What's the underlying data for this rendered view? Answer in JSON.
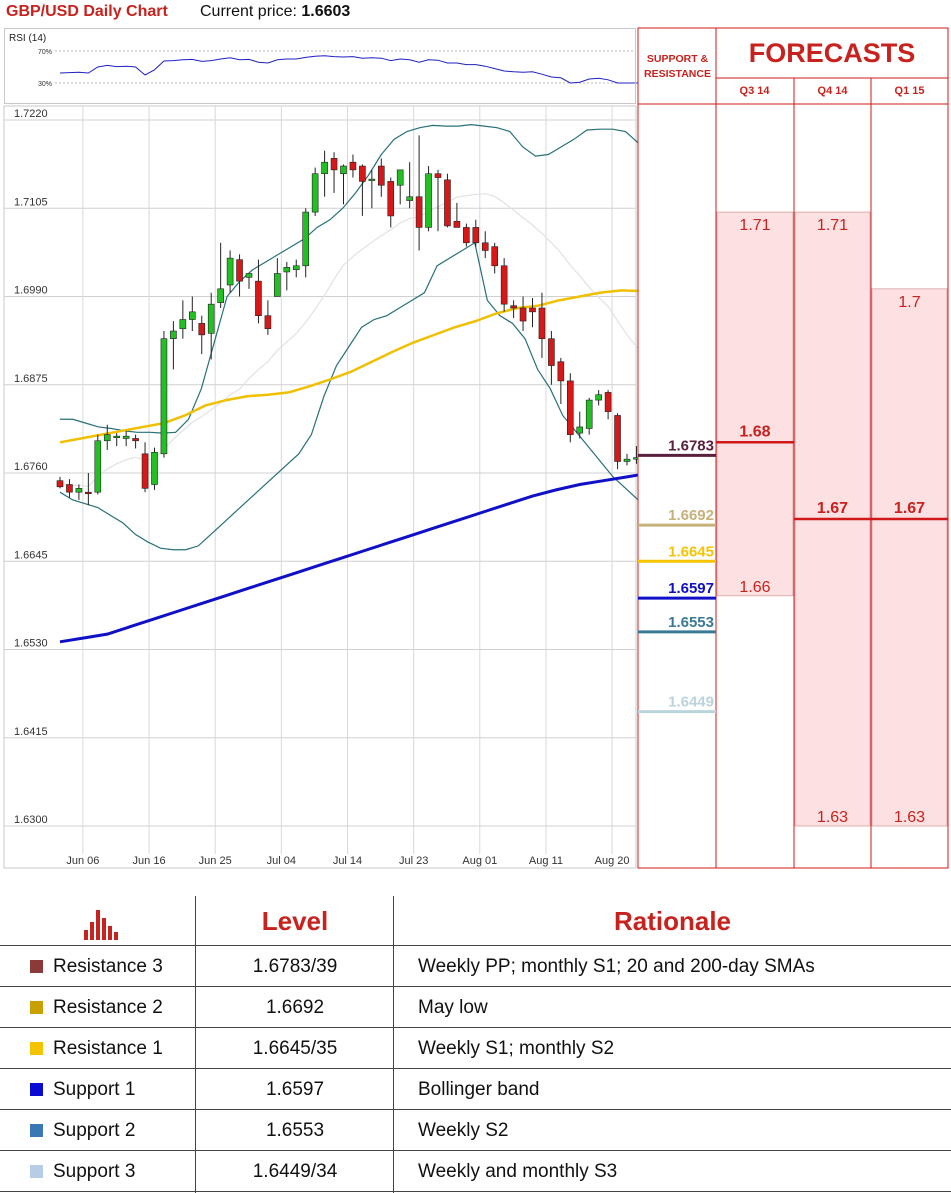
{
  "header": {
    "title": "GBP/USD Daily Chart",
    "current_price_label": "Current price:",
    "current_price": "1.6603"
  },
  "rsi": {
    "title": "RSI (14)",
    "levels": [
      "70%",
      "30%"
    ]
  },
  "chart_data": {
    "type": "candlestick",
    "title": "GBP/USD Daily Chart",
    "ylim": [
      1.63,
      1.722
    ],
    "y_ticks": [
      1.722,
      1.7105,
      1.699,
      1.6875,
      1.676,
      1.6645,
      1.653,
      1.6415,
      1.63
    ],
    "y_tick_labels": [
      "1.7220",
      "1.7105",
      "1.6990",
      "1.6875",
      "1.6760",
      "1.6645",
      "1.6530",
      "1.6415",
      "1.6300"
    ],
    "x_tick_labels": [
      "Jun 06",
      "Jun 16",
      "Jun 25",
      "Jul 04",
      "Jul 14",
      "Jul 23",
      "Aug 01",
      "Aug 11",
      "Aug 20"
    ],
    "x_tick_index": [
      2,
      9,
      16,
      23,
      30,
      37,
      44,
      51,
      58
    ],
    "candles": [
      {
        "o": 1.675,
        "h": 1.6755,
        "l": 1.674,
        "c": 1.6742
      },
      {
        "o": 1.6745,
        "h": 1.6752,
        "l": 1.6728,
        "c": 1.6735
      },
      {
        "o": 1.6735,
        "h": 1.6745,
        "l": 1.6725,
        "c": 1.674
      },
      {
        "o": 1.6735,
        "h": 1.676,
        "l": 1.6718,
        "c": 1.6733
      },
      {
        "o": 1.6735,
        "h": 1.681,
        "l": 1.6732,
        "c": 1.6802
      },
      {
        "o": 1.6802,
        "h": 1.6823,
        "l": 1.679,
        "c": 1.681
      },
      {
        "o": 1.6808,
        "h": 1.6812,
        "l": 1.6795,
        "c": 1.6808
      },
      {
        "o": 1.6805,
        "h": 1.6815,
        "l": 1.6795,
        "c": 1.6808
      },
      {
        "o": 1.6805,
        "h": 1.681,
        "l": 1.6792,
        "c": 1.6802
      },
      {
        "o": 1.6785,
        "h": 1.68,
        "l": 1.6735,
        "c": 1.674
      },
      {
        "o": 1.6745,
        "h": 1.6793,
        "l": 1.6738,
        "c": 1.6787
      },
      {
        "o": 1.6785,
        "h": 1.6945,
        "l": 1.678,
        "c": 1.6935
      },
      {
        "o": 1.6935,
        "h": 1.6958,
        "l": 1.6895,
        "c": 1.6945
      },
      {
        "o": 1.6948,
        "h": 1.6985,
        "l": 1.6935,
        "c": 1.696
      },
      {
        "o": 1.696,
        "h": 1.699,
        "l": 1.6945,
        "c": 1.697
      },
      {
        "o": 1.6955,
        "h": 1.6965,
        "l": 1.6915,
        "c": 1.694
      },
      {
        "o": 1.6942,
        "h": 1.6995,
        "l": 1.6908,
        "c": 1.698
      },
      {
        "o": 1.6982,
        "h": 1.706,
        "l": 1.6975,
        "c": 1.7
      },
      {
        "o": 1.7005,
        "h": 1.705,
        "l": 1.6995,
        "c": 1.704
      },
      {
        "o": 1.7038,
        "h": 1.7045,
        "l": 1.699,
        "c": 1.701
      },
      {
        "o": 1.7015,
        "h": 1.702,
        "l": 1.7,
        "c": 1.702
      },
      {
        "o": 1.701,
        "h": 1.7038,
        "l": 1.6955,
        "c": 1.6965
      },
      {
        "o": 1.6965,
        "h": 1.6985,
        "l": 1.694,
        "c": 1.6948
      },
      {
        "o": 1.699,
        "h": 1.704,
        "l": 1.699,
        "c": 1.702
      },
      {
        "o": 1.7022,
        "h": 1.7035,
        "l": 1.6998,
        "c": 1.7028
      },
      {
        "o": 1.7025,
        "h": 1.7038,
        "l": 1.7015,
        "c": 1.703
      },
      {
        "o": 1.703,
        "h": 1.7105,
        "l": 1.7015,
        "c": 1.71
      },
      {
        "o": 1.71,
        "h": 1.7158,
        "l": 1.7095,
        "c": 1.715
      },
      {
        "o": 1.715,
        "h": 1.718,
        "l": 1.712,
        "c": 1.7165
      },
      {
        "o": 1.717,
        "h": 1.7178,
        "l": 1.7125,
        "c": 1.7155
      },
      {
        "o": 1.715,
        "h": 1.7162,
        "l": 1.711,
        "c": 1.716
      },
      {
        "o": 1.7165,
        "h": 1.7175,
        "l": 1.7145,
        "c": 1.7155
      },
      {
        "o": 1.716,
        "h": 1.7162,
        "l": 1.7095,
        "c": 1.714
      },
      {
        "o": 1.7143,
        "h": 1.7155,
        "l": 1.7105,
        "c": 1.7143
      },
      {
        "o": 1.716,
        "h": 1.717,
        "l": 1.712,
        "c": 1.7135
      },
      {
        "o": 1.714,
        "h": 1.7145,
        "l": 1.708,
        "c": 1.7095
      },
      {
        "o": 1.7135,
        "h": 1.7155,
        "l": 1.711,
        "c": 1.7155
      },
      {
        "o": 1.7115,
        "h": 1.7165,
        "l": 1.7105,
        "c": 1.712
      },
      {
        "o": 1.712,
        "h": 1.72,
        "l": 1.705,
        "c": 1.708
      },
      {
        "o": 1.708,
        "h": 1.716,
        "l": 1.7075,
        "c": 1.715
      },
      {
        "o": 1.715,
        "h": 1.7155,
        "l": 1.7075,
        "c": 1.7145
      },
      {
        "o": 1.7142,
        "h": 1.715,
        "l": 1.708,
        "c": 1.7082
      },
      {
        "o": 1.7088,
        "h": 1.7112,
        "l": 1.708,
        "c": 1.708
      },
      {
        "o": 1.708,
        "h": 1.7085,
        "l": 1.7055,
        "c": 1.706
      },
      {
        "o": 1.708,
        "h": 1.709,
        "l": 1.7055,
        "c": 1.706
      },
      {
        "o": 1.706,
        "h": 1.7075,
        "l": 1.704,
        "c": 1.705
      },
      {
        "o": 1.7055,
        "h": 1.706,
        "l": 1.702,
        "c": 1.703
      },
      {
        "o": 1.703,
        "h": 1.704,
        "l": 1.697,
        "c": 1.698
      },
      {
        "o": 1.6978,
        "h": 1.6985,
        "l": 1.6962,
        "c": 1.6975
      },
      {
        "o": 1.6975,
        "h": 1.699,
        "l": 1.6945,
        "c": 1.6958
      },
      {
        "o": 1.6975,
        "h": 1.6988,
        "l": 1.695,
        "c": 1.697
      },
      {
        "o": 1.6975,
        "h": 1.6995,
        "l": 1.691,
        "c": 1.6935
      },
      {
        "o": 1.6935,
        "h": 1.6945,
        "l": 1.6875,
        "c": 1.69
      },
      {
        "o": 1.6905,
        "h": 1.691,
        "l": 1.685,
        "c": 1.688
      },
      {
        "o": 1.688,
        "h": 1.689,
        "l": 1.68,
        "c": 1.681
      },
      {
        "o": 1.6812,
        "h": 1.684,
        "l": 1.6805,
        "c": 1.682
      },
      {
        "o": 1.6818,
        "h": 1.6858,
        "l": 1.681,
        "c": 1.6855
      },
      {
        "o": 1.6855,
        "h": 1.6868,
        "l": 1.6848,
        "c": 1.6862
      },
      {
        "o": 1.6865,
        "h": 1.6868,
        "l": 1.683,
        "c": 1.684
      },
      {
        "o": 1.6835,
        "h": 1.6838,
        "l": 1.6765,
        "c": 1.6775
      },
      {
        "o": 1.6775,
        "h": 1.6785,
        "l": 1.677,
        "c": 1.6778
      },
      {
        "o": 1.6778,
        "h": 1.6795,
        "l": 1.6772,
        "c": 1.678
      },
      {
        "o": 1.6775,
        "h": 1.681,
        "l": 1.677,
        "c": 1.6805
      },
      {
        "o": 1.68,
        "h": 1.682,
        "l": 1.67,
        "c": 1.6705
      },
      {
        "o": 1.6705,
        "h": 1.671,
        "l": 1.6675,
        "c": 1.6698
      },
      {
        "o": 1.6725,
        "h": 1.673,
        "l": 1.6708,
        "c": 1.671
      },
      {
        "o": 1.672,
        "h": 1.6725,
        "l": 1.6705,
        "c": 1.6715
      },
      {
        "o": 1.6715,
        "h": 1.672,
        "l": 1.661,
        "c": 1.662
      },
      {
        "o": 1.662,
        "h": 1.6625,
        "l": 1.6598,
        "c": 1.6603
      }
    ],
    "series": [
      {
        "name": "",
        "color": "#28707a",
        "values": [
          1.683,
          1.683,
          1.6825,
          1.682,
          1.6818,
          1.6815,
          1.6813,
          1.6813,
          1.6812,
          1.6813,
          1.683,
          1.687,
          1.693,
          1.699,
          1.701,
          1.7025,
          1.7035,
          1.7045,
          1.7055,
          1.7065,
          1.708,
          1.709,
          1.7105,
          1.7125,
          1.7148,
          1.7175,
          1.7195,
          1.7205,
          1.721,
          1.7213,
          1.7212,
          1.7212,
          1.7214,
          1.7212,
          1.721,
          1.7205,
          1.7185,
          1.7173,
          1.7175,
          1.7185,
          1.7195,
          1.7207,
          1.7208,
          1.7208,
          1.7205,
          1.719,
          1.716,
          1.711,
          1.707,
          1.702,
          1.6985
        ]
      },
      {
        "name": "",
        "color": "#28707a",
        "values": [
          1.6735,
          1.6725,
          1.672,
          1.6715,
          1.6705,
          1.6695,
          1.668,
          1.667,
          1.6662,
          1.666,
          1.666,
          1.6665,
          1.668,
          1.6695,
          1.671,
          1.6725,
          1.674,
          1.6755,
          1.677,
          1.6785,
          1.681,
          1.686,
          1.69,
          1.6925,
          1.695,
          1.696,
          1.6965,
          1.6975,
          1.6985,
          1.6995,
          1.703,
          1.704,
          1.705,
          1.706,
          1.6985,
          1.6965,
          1.6955,
          1.6935,
          1.6895,
          1.687,
          1.6835,
          1.6815,
          1.6795,
          1.6775,
          1.6755,
          1.674,
          1.6725,
          1.6705,
          1.6665,
          1.6645,
          1.6625,
          1.6595
        ]
      },
      {
        "name": "",
        "color": "#f0c000",
        "values": [
          1.68,
          1.6805,
          1.681,
          1.6815,
          1.682,
          1.6825,
          1.6835,
          1.6848,
          1.6855,
          1.686,
          1.6862,
          1.6865,
          1.6873,
          1.6882,
          1.6892,
          1.6905,
          1.6918,
          1.693,
          1.694,
          1.695,
          1.6958,
          1.6968,
          1.6975,
          1.6978,
          1.6985,
          1.699,
          1.6995,
          1.6998,
          1.6997,
          1.6995,
          1.699,
          1.6985
        ]
      },
      {
        "name": "",
        "color": "#1010c8",
        "values": [
          1.654,
          1.6545,
          1.655,
          1.656,
          1.657,
          1.658,
          1.659,
          1.66,
          1.661,
          1.662,
          1.663,
          1.664,
          1.665,
          1.666,
          1.667,
          1.668,
          1.669,
          1.67,
          1.671,
          1.672,
          1.673,
          1.6738,
          1.6745,
          1.675,
          1.6755,
          1.676,
          1.6765,
          1.6769,
          1.6772
        ]
      }
    ],
    "level_labels": [
      {
        "value": "1.6783",
        "color": "#5a1f3c",
        "y": 1.6783
      },
      {
        "value": "1.6692",
        "color": "#c8b07a",
        "y": 1.6692
      },
      {
        "value": "1.6645",
        "color": "#f5c400",
        "y": 1.6645
      },
      {
        "value": "1.6597",
        "color": "#1010c8",
        "y": 1.6597
      },
      {
        "value": "1.6553",
        "color": "#3a7a96",
        "y": 1.6553
      },
      {
        "value": "1.6449",
        "color": "#b9d4dc",
        "y": 1.6449
      }
    ],
    "forecasts": {
      "title": "FORECASTS",
      "support_resistance_header": [
        "SUPPORT &",
        "RESISTANCE"
      ],
      "quarters": [
        {
          "label": "Q3 14",
          "high": 1.71,
          "mid": 1.68,
          "low": 1.66,
          "high_label": "1.71",
          "mid_label": "1.68",
          "low_label": "1.66"
        },
        {
          "label": "Q4 14",
          "high": 1.71,
          "mid": 1.67,
          "low": 1.63,
          "high_label": "1.71",
          "mid_label": "1.67",
          "low_label": "1.63"
        },
        {
          "label": "Q1 15",
          "high": 1.7,
          "mid": 1.67,
          "low": 1.63,
          "high_label": "1.7",
          "mid_label": "1.67",
          "low_label": "1.63"
        }
      ]
    }
  },
  "table": {
    "headers": {
      "icon": "bar-chart-icon",
      "level": "Level",
      "rationale": "Rationale"
    },
    "rows": [
      {
        "name": "Resistance 3",
        "color": "#8b3a3a",
        "level": "1.6783/39",
        "rationale": "Weekly PP; monthly S1; 20 and 200-day SMAs"
      },
      {
        "name": "Resistance 2",
        "color": "#c8a000",
        "level": "1.6692",
        "rationale": "May low"
      },
      {
        "name": "Resistance 1",
        "color": "#f5c400",
        "level": "1.6645/35",
        "rationale": "Weekly S1; monthly S2"
      },
      {
        "name": "Support 1",
        "color": "#0a0ad2",
        "level": "1.6597",
        "rationale": "Bollinger band"
      },
      {
        "name": "Support 2",
        "color": "#3a78b4",
        "level": "1.6553",
        "rationale": "Weekly S2"
      },
      {
        "name": "Support 3",
        "color": "#b7cde6",
        "level": "1.6449/34",
        "rationale": "Weekly and monthly S3"
      }
    ]
  }
}
